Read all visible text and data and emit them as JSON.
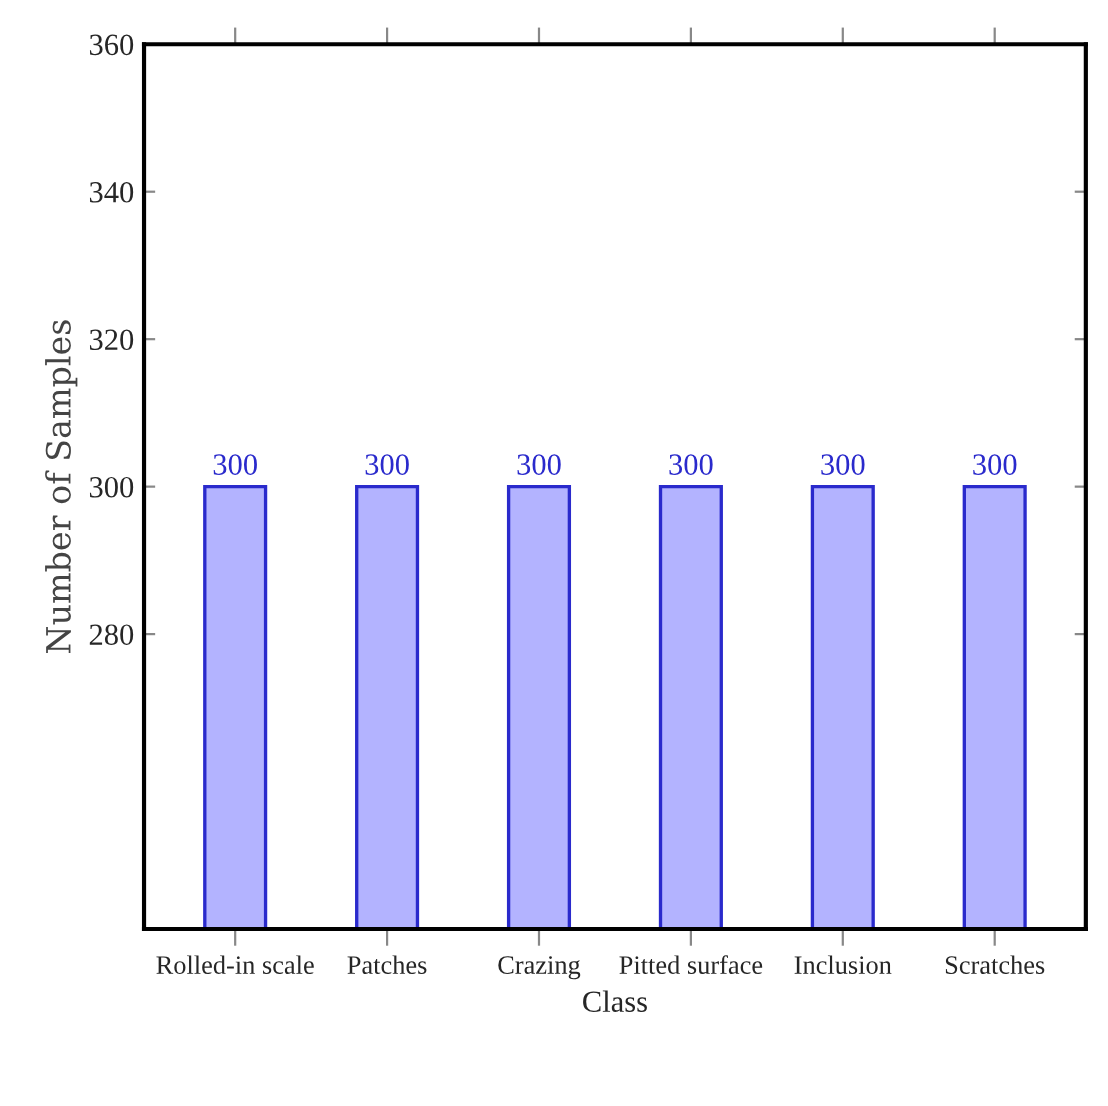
{
  "chart_data": {
    "type": "bar",
    "xlabel": "Class",
    "ylabel": "Number of Samples",
    "categories": [
      "Rolled-in scale",
      "Patches",
      "Crazing",
      "Pitted surface",
      "Inclusion",
      "Scratches"
    ],
    "values": [
      300,
      300,
      300,
      300,
      300,
      300
    ],
    "color": "#b3b3ff",
    "ylim": [
      240,
      360
    ],
    "yticks": [
      280,
      300,
      320,
      340,
      360
    ],
    "data_labels": true,
    "grid": false,
    "legend": false
  }
}
